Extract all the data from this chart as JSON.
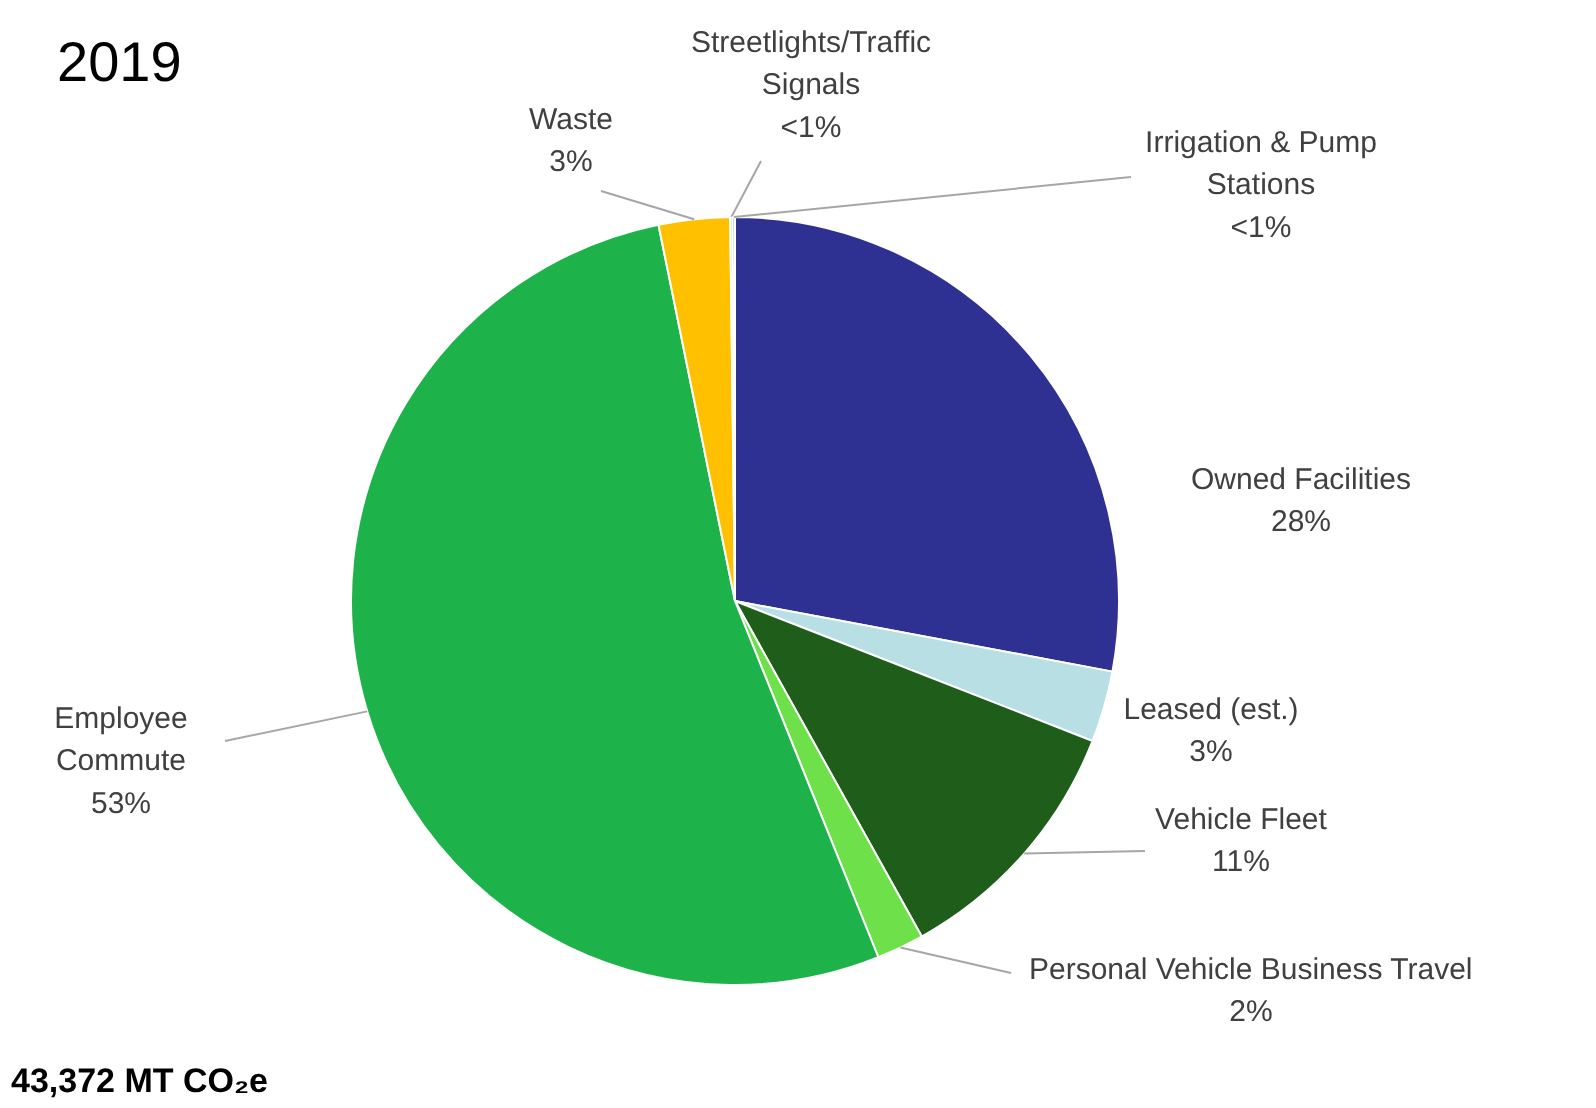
{
  "chart_data": {
    "type": "pie",
    "title": "2019",
    "categories": [
      "Owned Facilities",
      "Leased (est.)",
      "Vehicle Fleet",
      "Personal Vehicle Business Travel",
      "Employee Commute",
      "Waste",
      "Streetlights/Traffic Signals",
      "Irrigation & Pump Stations"
    ],
    "values": [
      28,
      3,
      11,
      2,
      53,
      3,
      0.1,
      0.1
    ],
    "value_labels": [
      "28%",
      "3%",
      "11%",
      "2%",
      "53%",
      "3%",
      "<1%",
      "<1%"
    ],
    "colors": [
      "#2e3192",
      "#b7dfe4",
      "#1e5e1a",
      "#6ee04a",
      "#1db34a",
      "#ffc000",
      "#a5a5a5",
      "#5b9bd5"
    ],
    "annotations": [
      "43,372 MT CO₂e"
    ]
  }
}
